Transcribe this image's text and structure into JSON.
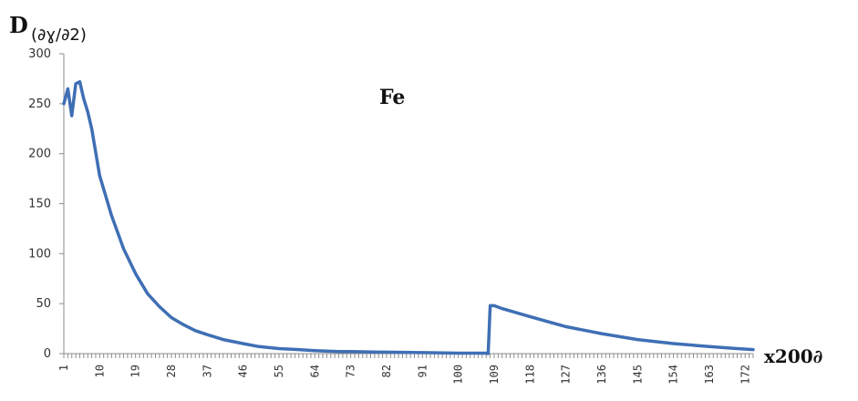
{
  "chart_data": {
    "type": "line",
    "title": "",
    "annotation": "Fe",
    "ylabel": "D",
    "ylabel_unit": "(∂ɣ/∂2)",
    "xlabel": "x200∂",
    "ylim": [
      0,
      300
    ],
    "yticks": [
      0,
      50,
      100,
      150,
      200,
      250,
      300
    ],
    "xlim": [
      1,
      174
    ],
    "xticks": [
      1,
      10,
      19,
      28,
      37,
      46,
      55,
      64,
      73,
      82,
      91,
      100,
      109,
      118,
      127,
      136,
      145,
      154,
      163,
      172
    ],
    "grid": false,
    "legend": "none",
    "series": [
      {
        "color": "#3f6fb5",
        "x": [
          1,
          2,
          3,
          4,
          5,
          6,
          7,
          8,
          10,
          13,
          16,
          19,
          22,
          25,
          28,
          31,
          34,
          37,
          41,
          46,
          50,
          55,
          60,
          64,
          70,
          73,
          80,
          82,
          90,
          91,
          100,
          107,
          107.5,
          108,
          109,
          111,
          118,
          127,
          136,
          145,
          154,
          163,
          170,
          174
        ],
        "y": [
          250,
          265,
          238,
          270,
          272,
          255,
          242,
          225,
          178,
          138,
          105,
          80,
          60,
          47,
          36,
          29,
          23,
          19,
          14,
          10,
          7,
          5,
          4,
          3,
          2,
          2,
          1.5,
          1.5,
          1,
          1,
          0.5,
          0.5,
          0,
          48,
          48,
          45,
          37,
          27,
          20,
          14,
          10,
          7,
          5,
          4
        ]
      }
    ]
  }
}
